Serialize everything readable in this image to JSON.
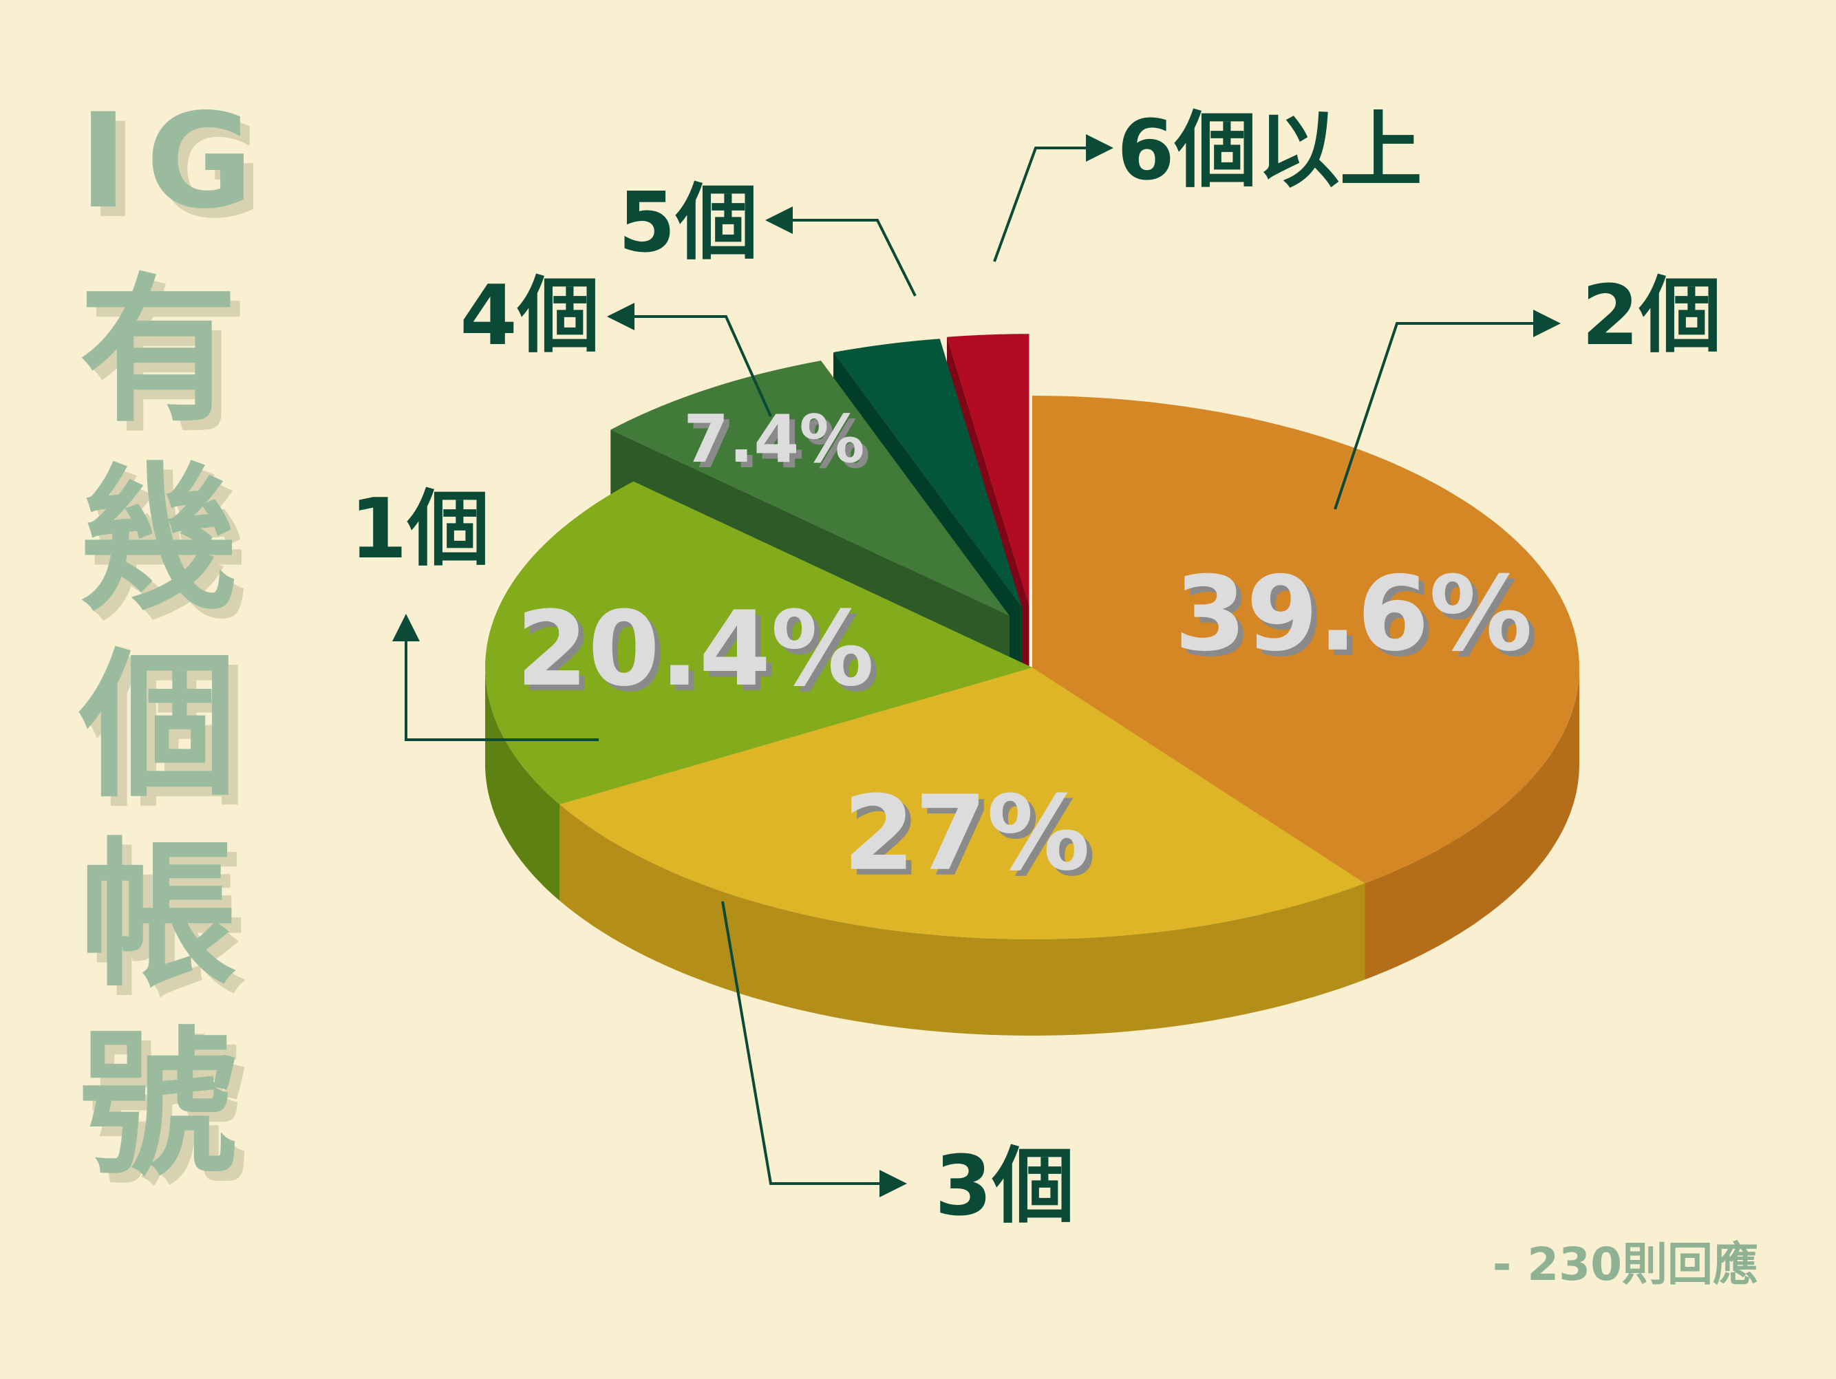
{
  "title": "IG有幾個帳號",
  "title_chars": [
    "I",
    "G",
    "有",
    "幾",
    "個",
    "帳",
    "號"
  ],
  "footnote": "- 230則回應",
  "colors": {
    "background": "#f9f0d2",
    "title": "#9bbb9f",
    "title_shadow": "#d9d2b0",
    "label": "#0a4a36",
    "percent_text": "#dcdcdc",
    "percent_shadow": "#8a8a8a"
  },
  "chart_data": {
    "type": "pie",
    "title": "IG有幾個帳號",
    "total_responses": 230,
    "slices": [
      {
        "label": "2個",
        "value": 39.6,
        "percent_label": "39.6%",
        "color": "#d68725",
        "side_color": "#b46d18",
        "exploded": false
      },
      {
        "label": "3個",
        "value": 27,
        "percent_label": "27%",
        "color": "#ddb526",
        "side_color": "#b38f19",
        "exploded": false
      },
      {
        "label": "1個",
        "value": 20.4,
        "percent_label": "20.4%",
        "color": "#82ac1c",
        "side_color": "#5e8212",
        "exploded": false
      },
      {
        "label": "4個",
        "value": 7.4,
        "percent_label": "7.4%",
        "color": "#417a39",
        "side_color": "#2d5a27",
        "exploded": true
      },
      {
        "label": "5個",
        "value": 3.2,
        "percent_label": "",
        "color": "#04563a",
        "side_color": "#023d28",
        "exploded": true
      },
      {
        "label": "6個以上",
        "value": 2.4,
        "percent_label": "",
        "color": "#b30b24",
        "side_color": "#7e0717",
        "exploded": true
      }
    ]
  }
}
